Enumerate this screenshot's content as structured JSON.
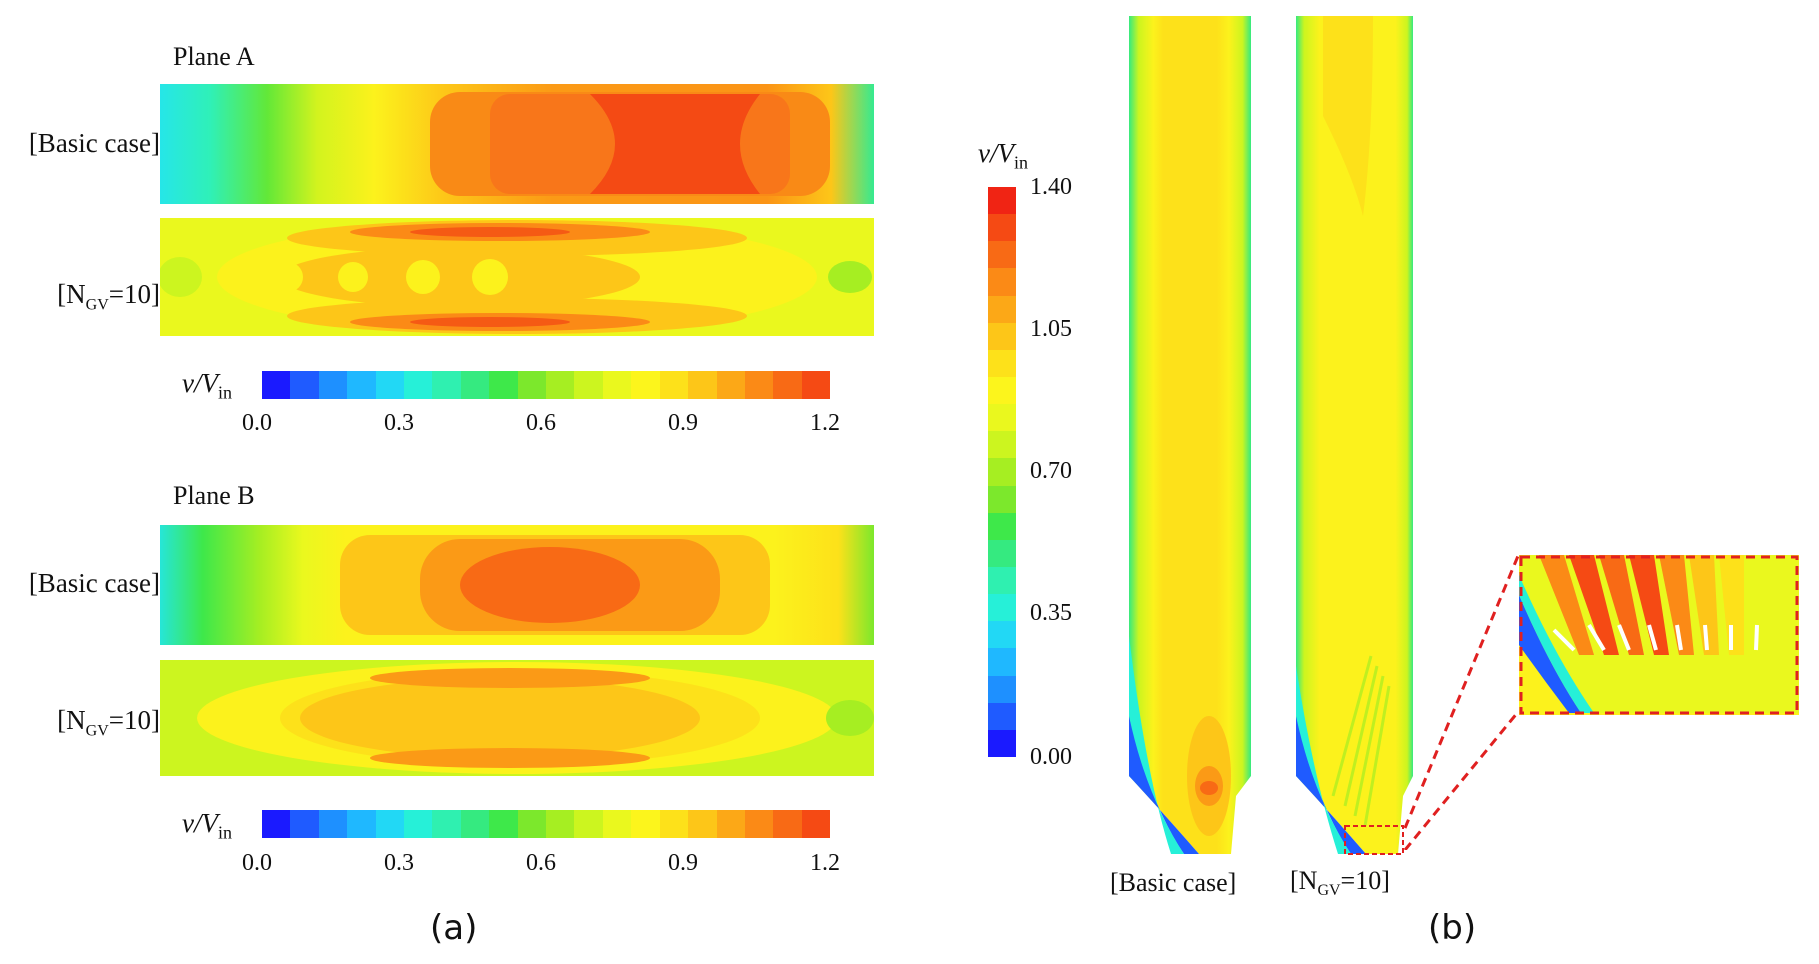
{
  "panel_a": {
    "plane_a_title": "Plane A",
    "plane_b_title": "Plane B",
    "row_basic": "[Basic case]",
    "row_ngv_prefix": "[N",
    "row_ngv_sub": "GV",
    "row_ngv_suffix": "=10]",
    "colorbar_label_main": "v/V",
    "colorbar_label_sub": "in",
    "colorbar_ticks": [
      "0.0",
      "0.3",
      "0.6",
      "0.9",
      "1.2"
    ],
    "letter": "(a)"
  },
  "panel_b": {
    "colorbar_label_main": "v/V",
    "colorbar_label_sub": "in",
    "colorbar_ticks": [
      "1.40",
      "1.05",
      "0.70",
      "0.35",
      "0.00"
    ],
    "label_basic": "[Basic case]",
    "label_ngv_prefix": "[N",
    "label_ngv_sub": "GV",
    "label_ngv_suffix": "=10]",
    "letter": "(b)"
  },
  "colors": {
    "scale": [
      "#1a1aff",
      "#1f5bff",
      "#1e90ff",
      "#1fb8ff",
      "#22d8f5",
      "#26f0d8",
      "#2ff0b0",
      "#35ea80",
      "#3ee84a",
      "#7ce82c",
      "#a6ee22",
      "#ccf51f",
      "#eaf81e",
      "#fcf51c",
      "#fde11a",
      "#fdc618",
      "#fca817",
      "#fb8a16",
      "#f86a15",
      "#f54a14",
      "#f02414"
    ]
  }
}
